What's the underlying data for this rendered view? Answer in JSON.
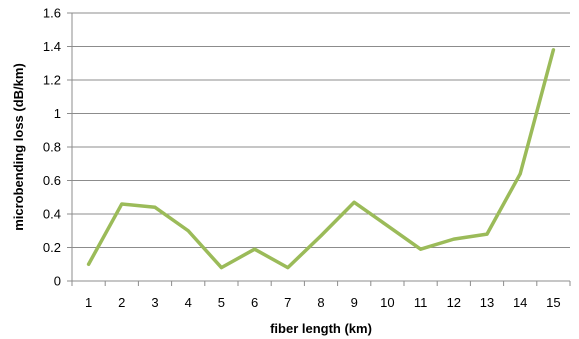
{
  "chart_data": {
    "type": "line",
    "title": "",
    "xlabel": "fiber length (km)",
    "ylabel": "microbending loss (dB/km)",
    "x": [
      1,
      2,
      3,
      4,
      5,
      6,
      7,
      8,
      9,
      10,
      11,
      12,
      13,
      14,
      15
    ],
    "series": [
      {
        "values": [
          0.1,
          0.46,
          0.44,
          0.3,
          0.08,
          0.19,
          0.08,
          0.27,
          0.47,
          0.33,
          0.19,
          0.25,
          0.28,
          0.64,
          1.38
        ],
        "color": "#9bbb59"
      }
    ],
    "ylim": [
      0,
      1.6
    ],
    "yticks": [
      "0",
      "0.2",
      "0.4",
      "0.6",
      "0.8",
      "1",
      "1.2",
      "1.4",
      "1.6"
    ],
    "xticks": [
      "1",
      "2",
      "3",
      "4",
      "5",
      "6",
      "7",
      "8",
      "9",
      "10",
      "11",
      "12",
      "13",
      "14",
      "15"
    ],
    "grid": "horizontal",
    "legend": "none"
  }
}
